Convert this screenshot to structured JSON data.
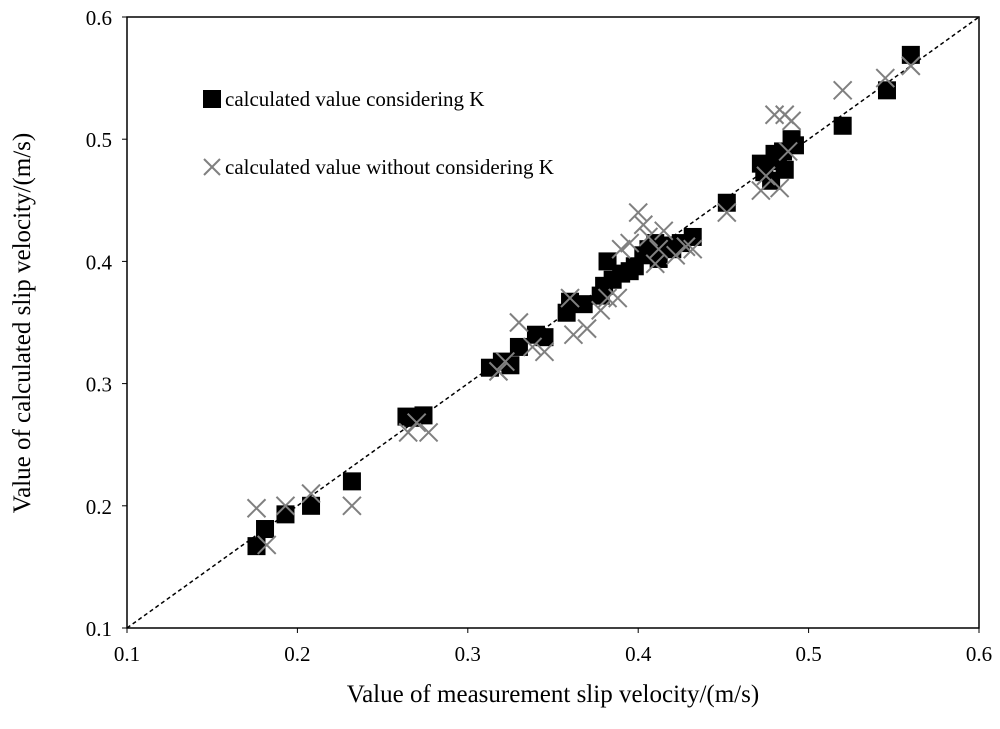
{
  "chart_data": {
    "type": "scatter",
    "title": "",
    "xlabel": "Value of measurement slip velocity/(m/s)",
    "ylabel": "Value of calculated slip velocity/(m/s)",
    "xlim": [
      0.1,
      0.6
    ],
    "ylim": [
      0.1,
      0.6
    ],
    "xticks": [
      "0.1",
      "0.2",
      "0.3",
      "0.4",
      "0.5",
      "0.6"
    ],
    "yticks": [
      "0.1",
      "0.2",
      "0.3",
      "0.4",
      "0.5",
      "0.6"
    ],
    "grid": false,
    "legend_position": "top-left",
    "reference_line": {
      "x": [
        0.1,
        0.6
      ],
      "y": [
        0.1,
        0.6
      ],
      "style": "dashed"
    },
    "series": [
      {
        "name": "calculated value considering K",
        "marker": "square",
        "color": "#000000",
        "points": [
          [
            0.176,
            0.167
          ],
          [
            0.181,
            0.181
          ],
          [
            0.193,
            0.193
          ],
          [
            0.208,
            0.2
          ],
          [
            0.232,
            0.22
          ],
          [
            0.264,
            0.273
          ],
          [
            0.268,
            0.272
          ],
          [
            0.274,
            0.274
          ],
          [
            0.313,
            0.313
          ],
          [
            0.32,
            0.318
          ],
          [
            0.325,
            0.315
          ],
          [
            0.33,
            0.33
          ],
          [
            0.34,
            0.34
          ],
          [
            0.345,
            0.338
          ],
          [
            0.358,
            0.358
          ],
          [
            0.36,
            0.367
          ],
          [
            0.368,
            0.365
          ],
          [
            0.378,
            0.372
          ],
          [
            0.38,
            0.38
          ],
          [
            0.382,
            0.4
          ],
          [
            0.385,
            0.385
          ],
          [
            0.39,
            0.39
          ],
          [
            0.395,
            0.392
          ],
          [
            0.398,
            0.396
          ],
          [
            0.403,
            0.405
          ],
          [
            0.406,
            0.41
          ],
          [
            0.41,
            0.415
          ],
          [
            0.412,
            0.402
          ],
          [
            0.415,
            0.413
          ],
          [
            0.42,
            0.41
          ],
          [
            0.425,
            0.415
          ],
          [
            0.432,
            0.42
          ],
          [
            0.452,
            0.448
          ],
          [
            0.472,
            0.48
          ],
          [
            0.474,
            0.473
          ],
          [
            0.478,
            0.466
          ],
          [
            0.48,
            0.488
          ],
          [
            0.482,
            0.482
          ],
          [
            0.485,
            0.49
          ],
          [
            0.486,
            0.475
          ],
          [
            0.49,
            0.5
          ],
          [
            0.492,
            0.495
          ],
          [
            0.52,
            0.511
          ],
          [
            0.546,
            0.54
          ],
          [
            0.56,
            0.569
          ]
        ]
      },
      {
        "name": "calculated value without considering K",
        "marker": "x",
        "color": "#808080",
        "points": [
          [
            0.176,
            0.198
          ],
          [
            0.182,
            0.168
          ],
          [
            0.193,
            0.2
          ],
          [
            0.208,
            0.21
          ],
          [
            0.232,
            0.2
          ],
          [
            0.265,
            0.26
          ],
          [
            0.27,
            0.268
          ],
          [
            0.277,
            0.26
          ],
          [
            0.318,
            0.31
          ],
          [
            0.322,
            0.318
          ],
          [
            0.33,
            0.35
          ],
          [
            0.338,
            0.33
          ],
          [
            0.345,
            0.326
          ],
          [
            0.36,
            0.37
          ],
          [
            0.362,
            0.34
          ],
          [
            0.37,
            0.345
          ],
          [
            0.378,
            0.36
          ],
          [
            0.382,
            0.37
          ],
          [
            0.388,
            0.37
          ],
          [
            0.39,
            0.41
          ],
          [
            0.395,
            0.415
          ],
          [
            0.4,
            0.44
          ],
          [
            0.403,
            0.43
          ],
          [
            0.406,
            0.42
          ],
          [
            0.41,
            0.398
          ],
          [
            0.412,
            0.41
          ],
          [
            0.415,
            0.425
          ],
          [
            0.422,
            0.405
          ],
          [
            0.428,
            0.412
          ],
          [
            0.432,
            0.41
          ],
          [
            0.452,
            0.44
          ],
          [
            0.472,
            0.458
          ],
          [
            0.475,
            0.47
          ],
          [
            0.48,
            0.52
          ],
          [
            0.483,
            0.46
          ],
          [
            0.486,
            0.52
          ],
          [
            0.488,
            0.49
          ],
          [
            0.49,
            0.515
          ],
          [
            0.52,
            0.54
          ],
          [
            0.545,
            0.55
          ],
          [
            0.56,
            0.56
          ]
        ]
      }
    ]
  }
}
